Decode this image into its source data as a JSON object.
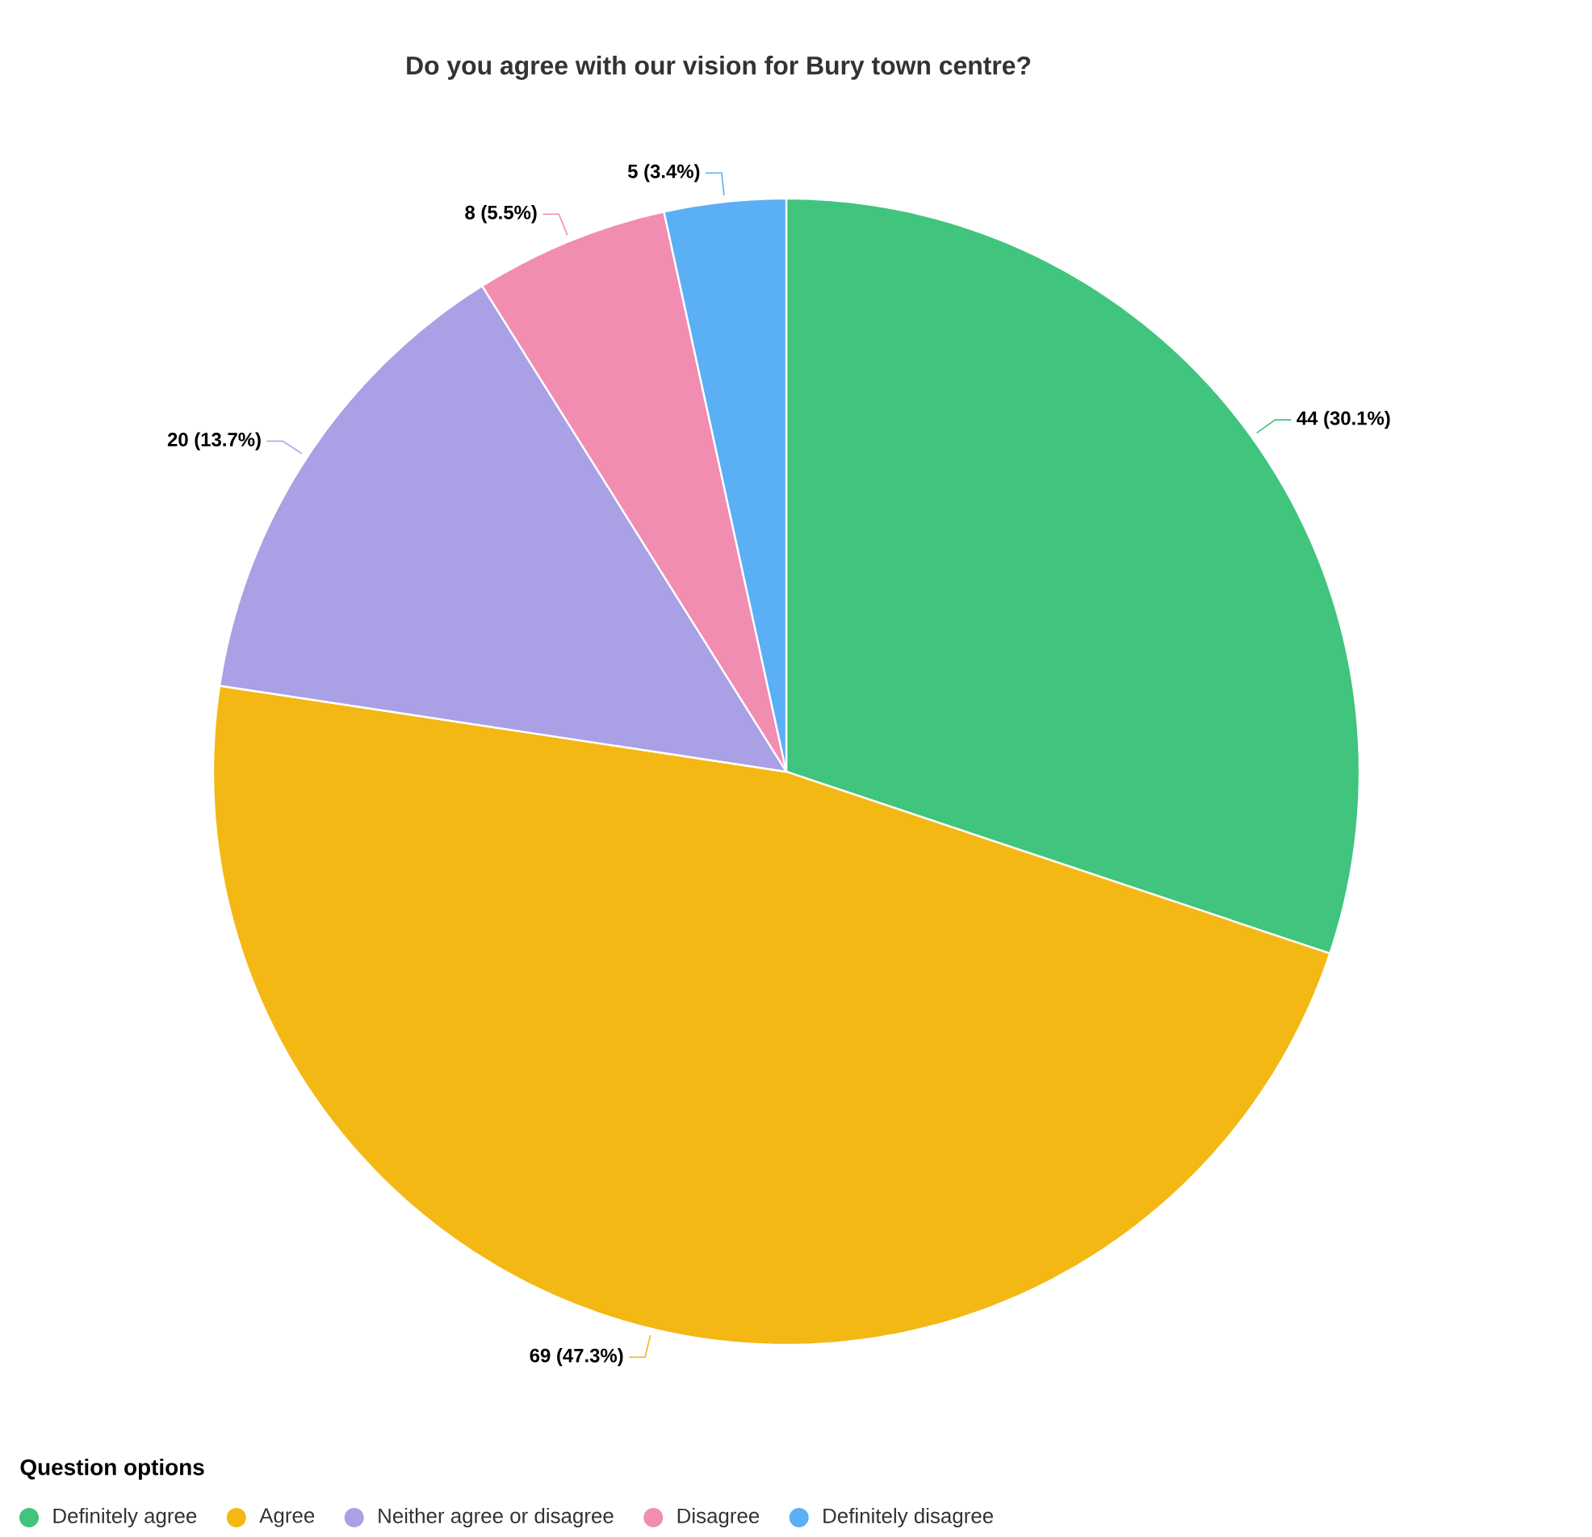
{
  "chart_data": {
    "type": "pie",
    "title": "Do you agree with our vision for Bury town centre?",
    "categories": [
      "Definitely agree",
      "Agree",
      "Neither agree or disagree",
      "Disagree",
      "Definitely disagree"
    ],
    "values": [
      44,
      69,
      20,
      8,
      5
    ],
    "value_labels": [
      "44 (30.1%)",
      "69 (47.3%)",
      "20 (13.7%)",
      "8 (5.5%)",
      "5 (3.4%)"
    ],
    "colors": [
      "#40c47e",
      "#f3b814",
      "#aaa0e6",
      "#f28db2",
      "#5aaff5"
    ],
    "legend_title": "Question options",
    "legend": "bottom left"
  }
}
